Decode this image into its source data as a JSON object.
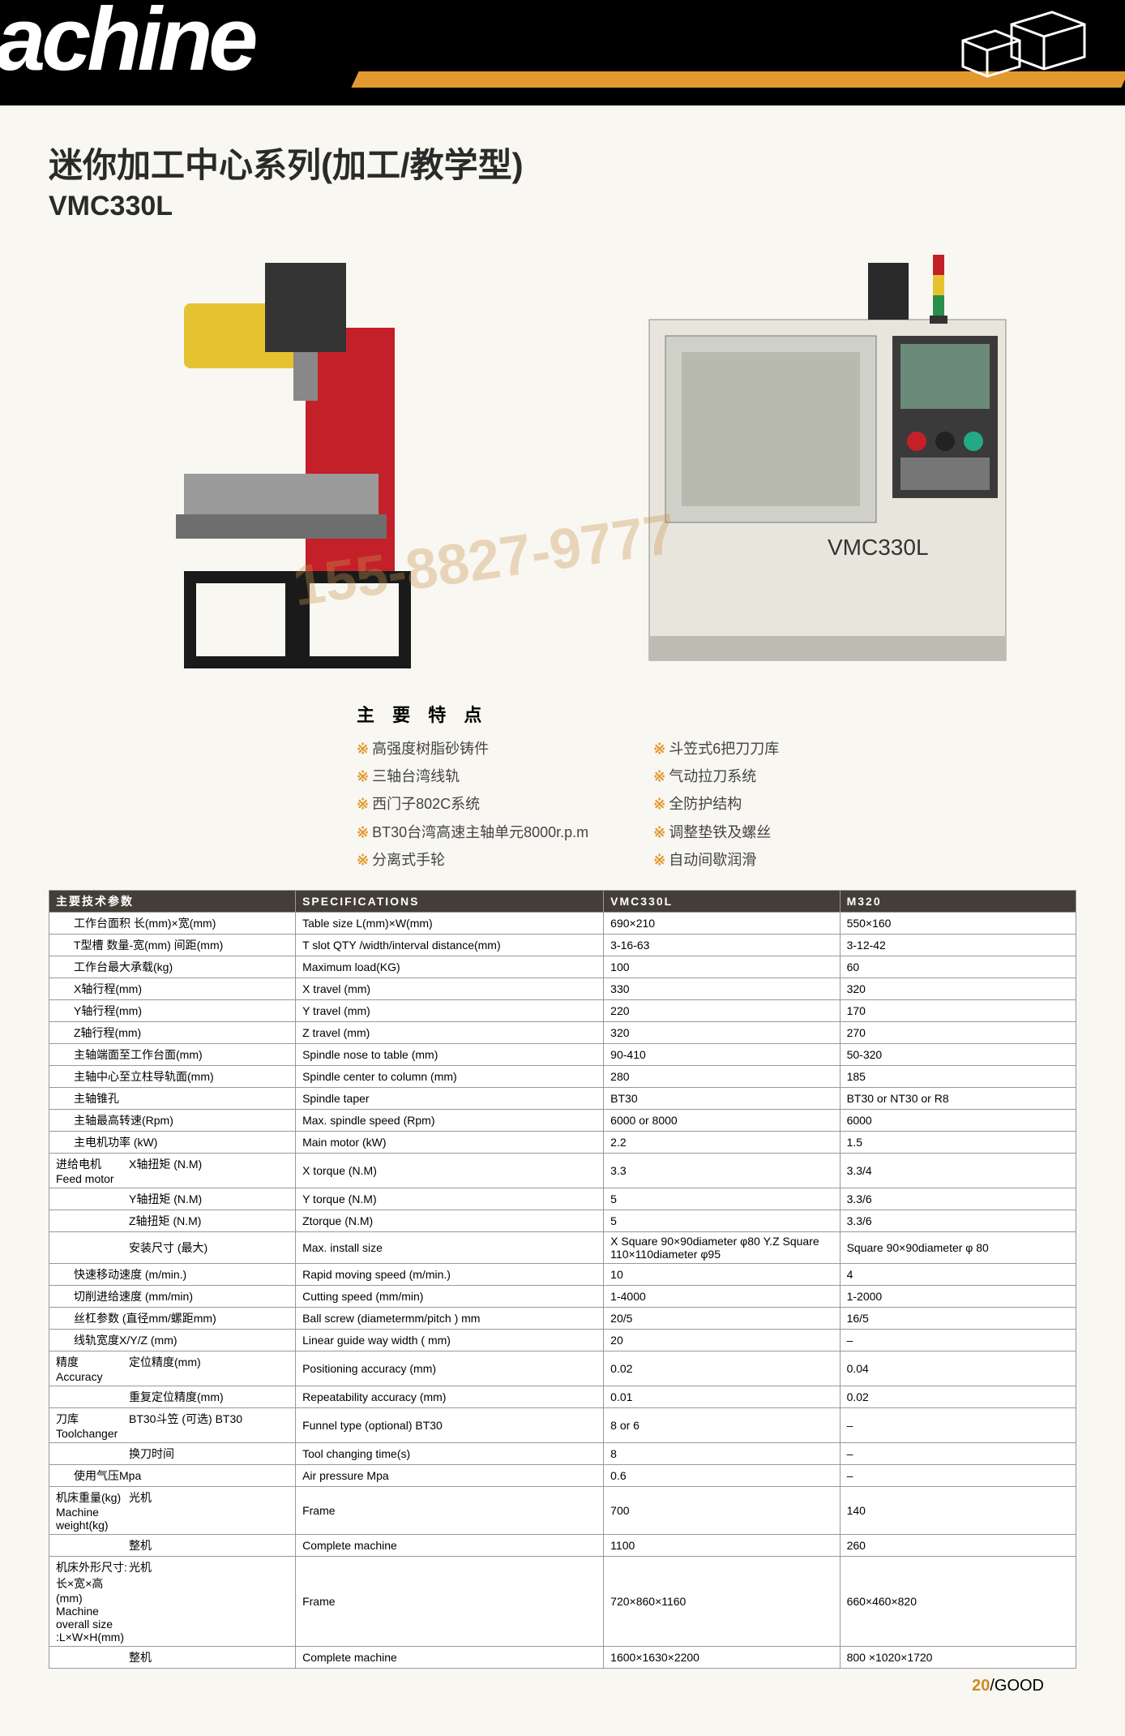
{
  "header_word": "achine",
  "title_cn": "迷你加工中心系列(加工/教学型)",
  "model": "VMC330L",
  "watermark": "155-8827-9777",
  "machine_label": "VMC330L",
  "features_heading": "主 要 特 点",
  "features_left": [
    "高强度树脂砂铸件",
    "三轴台湾线轨",
    "西门子802C系统",
    "BT30台湾高速主轴单元8000r.p.m",
    "分离式手轮"
  ],
  "features_right": [
    "斗笠式6把刀刀库",
    "气动拉刀系统",
    "全防护结构",
    "调整垫铁及螺丝",
    "自动间歇润滑"
  ],
  "table": {
    "head": [
      "主要技术参数",
      "SPECIFICATIONS",
      "VMC330L",
      "M320"
    ],
    "rows": [
      {
        "a": "工作台面积 长(mm)×宽(mm)",
        "b": "Table size L(mm)×W(mm)",
        "c": "690×210",
        "d": "550×160"
      },
      {
        "a": "T型槽 数量-宽(mm) 间距(mm)",
        "b": "T slot QTY /width/interval distance(mm)",
        "c": "3-16-63",
        "d": "3-12-42"
      },
      {
        "a": "工作台最大承载(kg)",
        "b": "Maximum load(KG)",
        "c": "100",
        "d": "60"
      },
      {
        "a": "X轴行程(mm)",
        "b": "X travel (mm)",
        "c": "330",
        "d": "320"
      },
      {
        "a": "Y轴行程(mm)",
        "b": "Y travel (mm)",
        "c": "220",
        "d": "170"
      },
      {
        "a": "Z轴行程(mm)",
        "b": "Z travel (mm)",
        "c": "320",
        "d": "270"
      },
      {
        "a": "主轴端面至工作台面(mm)",
        "b": "Spindle nose to table (mm)",
        "c": "90-410",
        "d": "50-320"
      },
      {
        "a": "主轴中心至立柱导轨面(mm)",
        "b": "Spindle center to column (mm)",
        "c": "280",
        "d": "185"
      },
      {
        "a": "主轴锥孔",
        "b": "Spindle taper",
        "c": "BT30",
        "d": "BT30 or NT30 or R8"
      },
      {
        "a": "主轴最高转速(Rpm)",
        "b": "Max. spindle speed (Rpm)",
        "c": "6000 or 8000",
        "d": "6000"
      },
      {
        "a": "主电机功率 (kW)",
        "b": "Main motor (kW)",
        "c": "2.2",
        "d": "1.5"
      }
    ],
    "feed_group_label_cn": "进给电机",
    "feed_group_label_en": "Feed motor",
    "feed_rows": [
      {
        "a": "X轴扭矩 (N.M)",
        "b": "X torque (N.M)",
        "c": "3.3",
        "d": "3.3/4"
      },
      {
        "a": "Y轴扭矩 (N.M)",
        "b": "Y torque (N.M)",
        "c": "5",
        "d": "3.3/6"
      },
      {
        "a": "Z轴扭矩 (N.M)",
        "b": "Ztorque (N.M)",
        "c": "5",
        "d": "3.3/6"
      },
      {
        "a": "安装尺寸 (最大)",
        "b": "Max. install size",
        "c": "X Square 90×90diameter φ80\nY.Z Square 110×110diameter φ95",
        "d": "Square 90×90diameter φ 80"
      }
    ],
    "rows2": [
      {
        "a": "快速移动速度 (m/min.)",
        "b": "Rapid moving speed (m/min.)",
        "c": "10",
        "d": "4"
      },
      {
        "a": "切削进给速度 (mm/min)",
        "b": "Cutting speed (mm/min)",
        "c": "1-4000",
        "d": "1-2000"
      },
      {
        "a": "丝杠参数 (直径mm/螺距mm)",
        "b": "Ball screw (diametermm/pitch ) mm",
        "c": "20/5",
        "d": "16/5"
      },
      {
        "a": "线轨宽度X/Y/Z (mm)",
        "b": "Linear guide way width ( mm)",
        "c": "20",
        "d": "–"
      }
    ],
    "acc_label_cn": "精度",
    "acc_label_en": "Accuracy",
    "acc_rows": [
      {
        "a": "定位精度(mm)",
        "b": "Positioning accuracy (mm)",
        "c": "0.02",
        "d": "0.04"
      },
      {
        "a": "重复定位精度(mm)",
        "b": "Repeatability accuracy (mm)",
        "c": "0.01",
        "d": "0.02"
      }
    ],
    "tool_label_cn": "刀库",
    "tool_label_en": "Toolchanger",
    "tool_rows": [
      {
        "a": "BT30斗笠 (可选) BT30",
        "b": "Funnel type (optional) BT30",
        "c": "8 or 6",
        "d": "–"
      },
      {
        "a": "换刀时间",
        "b": "Tool changing time(s)",
        "c": "8",
        "d": "–"
      }
    ],
    "rows3": [
      {
        "a": "使用气压Mpa",
        "b": "Air pressure Mpa",
        "c": "0.6",
        "d": "–"
      }
    ],
    "wt_label_cn": "机床重量(kg)",
    "wt_label_en": "Machine weight(kg)",
    "wt_rows": [
      {
        "a": "光机",
        "b": "Frame",
        "c": "700",
        "d": "140"
      },
      {
        "a": "整机",
        "b": "Complete machine",
        "c": "1100",
        "d": "260"
      }
    ],
    "sz_label_cn": "机床外形尺寸:长×宽×高(mm)",
    "sz_label_en": "Machine overall size :L×W×H(mm)",
    "sz_rows": [
      {
        "a": "光机",
        "b": "Frame",
        "c": "720×860×1160",
        "d": "660×460×820"
      },
      {
        "a": "整机",
        "b": "Complete machine",
        "c": "1600×1630×2200",
        "d": "800 ×1020×1720"
      }
    ]
  },
  "footer_num": "20",
  "footer_brand": "/GOOD",
  "colors": {
    "orange": "#e29a2f",
    "hdr_bg": "#000",
    "table_head": "#443e38"
  }
}
